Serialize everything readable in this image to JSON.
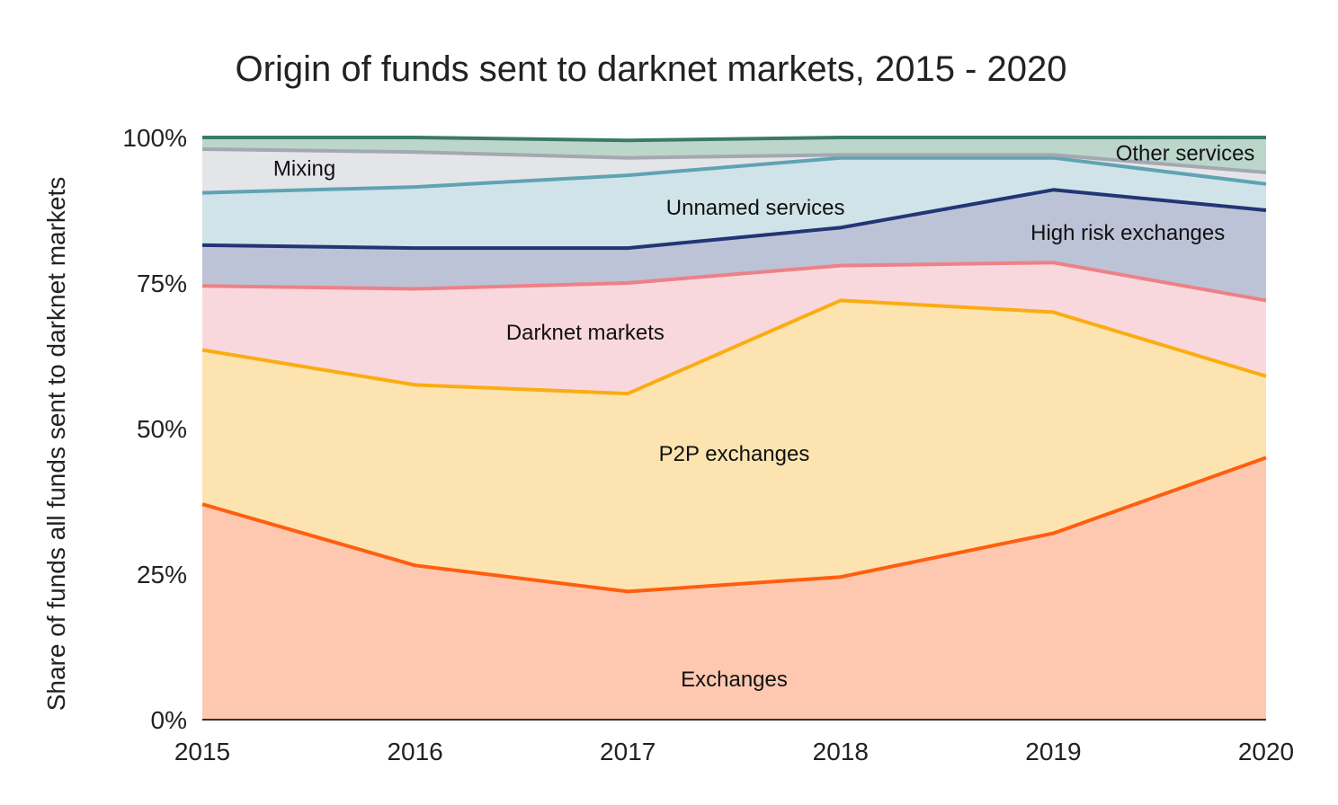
{
  "chart_data": {
    "type": "area",
    "stacked": true,
    "title": "Origin of funds sent to darknet markets, 2015 - 2020",
    "xlabel": "",
    "ylabel": "Share of funds all funds sent to darknet markets",
    "x": [
      "2015",
      "2016",
      "2017",
      "2018",
      "2019",
      "2020"
    ],
    "ylim": [
      0,
      100
    ],
    "yticks": [
      {
        "value": 0,
        "label": "0%"
      },
      {
        "value": 25,
        "label": "25%"
      },
      {
        "value": 50,
        "label": "50%"
      },
      {
        "value": 75,
        "label": "75%"
      },
      {
        "value": 100,
        "label": "100%"
      }
    ],
    "series": [
      {
        "name": "Exchanges",
        "color": "#ff5e0e",
        "fill": "#fec8b0",
        "values": [
          37,
          26.5,
          22,
          24.5,
          32,
          45
        ]
      },
      {
        "name": "P2P exchanges",
        "color": "#fbac12",
        "fill": "#fde3b0",
        "values": [
          26.5,
          31,
          34,
          47.5,
          38,
          14
        ]
      },
      {
        "name": "Darknet markets",
        "color": "#ee8087",
        "fill": "#f9d8dd",
        "values": [
          11,
          16.5,
          19,
          6,
          8.5,
          13
        ]
      },
      {
        "name": "High risk exchanges",
        "color": "#223575",
        "fill": "#bcc3d6",
        "values": [
          7,
          7,
          6,
          6.5,
          12.5,
          15.5
        ]
      },
      {
        "name": "Unnamed services",
        "color": "#5fa3b3",
        "fill": "#d0e3e8",
        "values": [
          9,
          10.5,
          12.5,
          12,
          5.5,
          4.5
        ]
      },
      {
        "name": "Mixing",
        "color": "#a4a8b0",
        "fill": "#e4e5e8",
        "values": [
          7.5,
          6,
          3,
          0.5,
          0.5,
          2
        ]
      },
      {
        "name": "Other services",
        "color": "#3c7a68",
        "fill": "#bcd6cb",
        "values": [
          2,
          2.5,
          3,
          3,
          3,
          6
        ]
      }
    ],
    "annotations": [
      {
        "series": "Exchanges",
        "text": "Exchanges"
      },
      {
        "series": "P2P exchanges",
        "text": "P2P exchanges"
      },
      {
        "series": "Darknet markets",
        "text": "Darknet markets"
      },
      {
        "series": "High risk exchanges",
        "text": "High risk exchanges"
      },
      {
        "series": "Unnamed services",
        "text": "Unnamed services"
      },
      {
        "series": "Mixing",
        "text": "Mixing"
      },
      {
        "series": "Other services",
        "text": "Other services"
      }
    ],
    "grid": false,
    "legend": "none (inline labels)"
  }
}
